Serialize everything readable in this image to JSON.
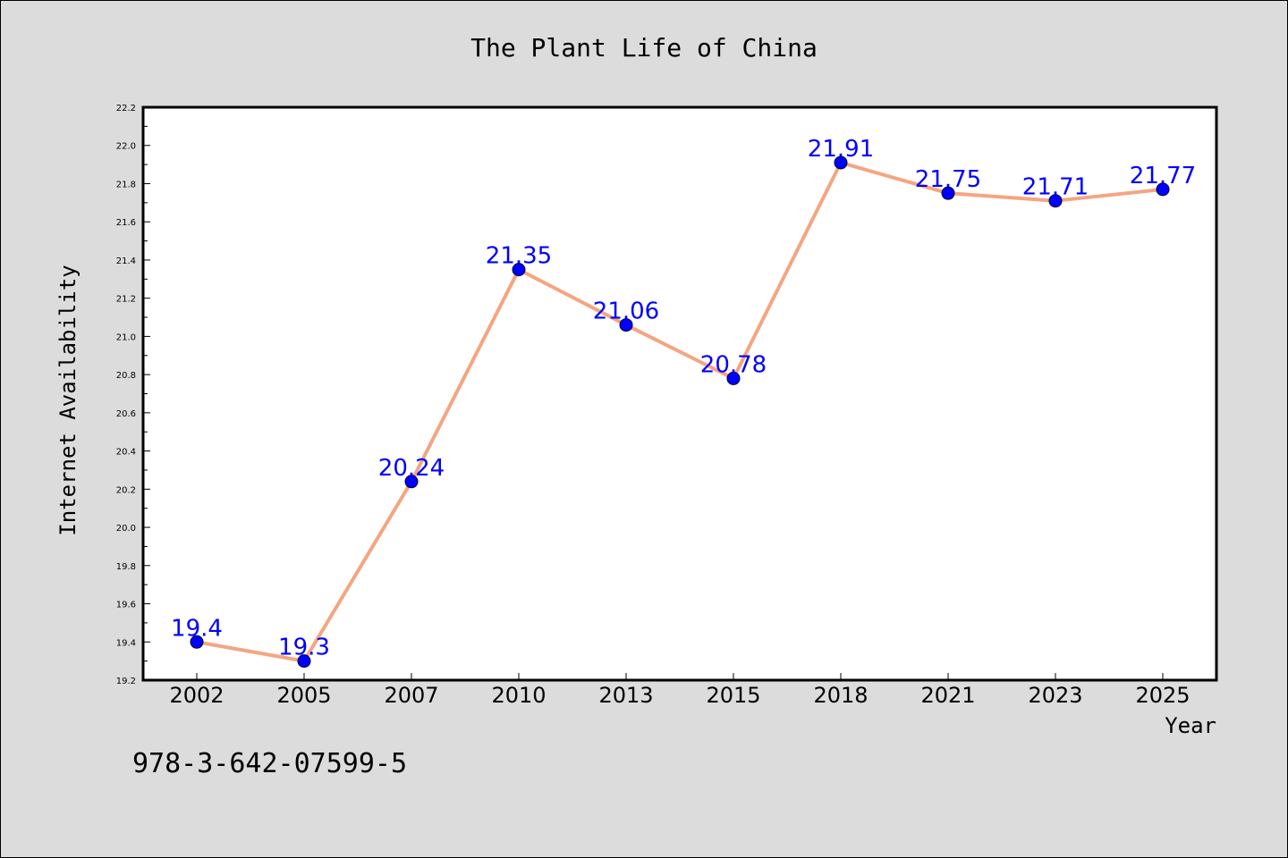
{
  "chart_data": {
    "type": "line",
    "title": "The Plant Life of China",
    "xlabel": "Year",
    "ylabel": "Internet Availability",
    "categories": [
      "2002",
      "2005",
      "2007",
      "2010",
      "2013",
      "2015",
      "2018",
      "2021",
      "2023",
      "2025"
    ],
    "series": [
      {
        "values": [
          19.4,
          19.3,
          20.24,
          21.35,
          21.06,
          20.78,
          21.91,
          21.75,
          21.71,
          21.77
        ],
        "labels": [
          "19.4",
          "19.3",
          "20.24",
          "21.35",
          "21.06",
          "20.78",
          "21.91",
          "21.75",
          "21.71",
          "21.77"
        ]
      }
    ],
    "ylim": [
      19.2,
      22.2
    ],
    "yticks": [
      "19.2",
      "19.4",
      "19.6",
      "19.8",
      "20.0",
      "20.2",
      "20.4",
      "20.6",
      "20.8",
      "21.0",
      "21.2",
      "21.4",
      "21.6",
      "21.8",
      "22.0",
      "22.2"
    ],
    "grid": false,
    "colors": {
      "line": "#f4a582",
      "marker": "#0000ff",
      "data_label": "#0000ff",
      "background": "#dcdcdc",
      "plot_background": "#ffffff"
    }
  },
  "caption": "978-3-642-07599-5"
}
